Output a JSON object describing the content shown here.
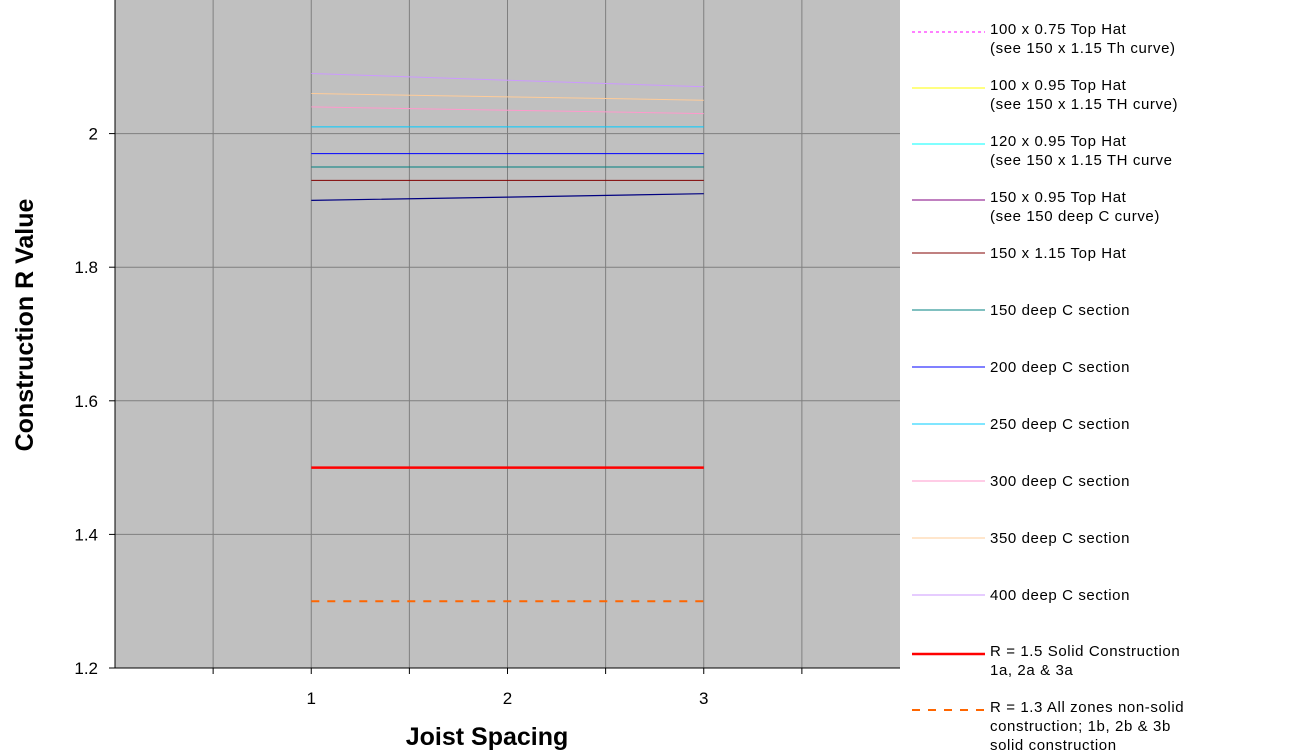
{
  "chart_data": {
    "type": "line",
    "xlabel": "Joist Spacing",
    "ylabel": "Construction R Value",
    "x": [
      1,
      2,
      3
    ],
    "xlim": [
      0,
      4
    ],
    "ylim": [
      1.2,
      2.2
    ],
    "xticks": [
      1,
      2,
      3
    ],
    "yticks": [
      1.2,
      1.4,
      1.6,
      1.8,
      2.0
    ],
    "ytick_labels": [
      "1.2",
      "1.4",
      "1.6",
      "1.8",
      "2"
    ],
    "grid": true,
    "plot_background": "#c0c0c0",
    "legend_position": "right",
    "series": [
      {
        "name": "100 x 0.75 Top Hat\n(see 150 x 1.15 Th curve)",
        "values": [
          null,
          null,
          null
        ],
        "color": "#ff00ff",
        "dash": "dotted",
        "width": 1
      },
      {
        "name": "100 x 0.95 Top Hat\n(see 150 x 1.15 TH curve)",
        "values": [
          null,
          null,
          null
        ],
        "color": "#ffff00",
        "dash": "solid",
        "width": 1
      },
      {
        "name": "120 x 0.95 Top Hat\n(see 150 x 1.15 TH curve",
        "values": [
          null,
          null,
          null
        ],
        "color": "#00ffff",
        "dash": "solid",
        "width": 1
      },
      {
        "name": "150 x 0.95 Top Hat\n(see 150 deep C curve)",
        "values": [
          null,
          null,
          null
        ],
        "color": "#800080",
        "dash": "solid",
        "width": 1
      },
      {
        "name": "150 x 1.15 Top Hat",
        "values": [
          1.93,
          1.93,
          1.93
        ],
        "color": "#800000",
        "dash": "solid",
        "width": 1
      },
      {
        "name": "150 deep C section",
        "values": [
          1.95,
          1.95,
          1.95
        ],
        "color": "#008080",
        "dash": "solid",
        "width": 1
      },
      {
        "name": "200 deep C section",
        "values": [
          1.97,
          1.97,
          1.97
        ],
        "color": "#0000ff",
        "dash": "solid",
        "width": 1
      },
      {
        "name": "250 deep C section",
        "values": [
          2.01,
          2.01,
          2.01
        ],
        "color": "#00ccff",
        "dash": "solid",
        "width": 1
      },
      {
        "name": "300 deep C section",
        "values": [
          2.04,
          2.035,
          2.03
        ],
        "color": "#ff99cc",
        "dash": "solid",
        "width": 1
      },
      {
        "name": "350 deep C section",
        "values": [
          2.06,
          2.055,
          2.05
        ],
        "color": "#ffcc99",
        "dash": "solid",
        "width": 1
      },
      {
        "name": "400 deep C section",
        "values": [
          2.09,
          2.08,
          2.07
        ],
        "color": "#cc99ff",
        "dash": "solid",
        "width": 1
      },
      {
        "name": "R = 1.5 Solid Construction\n1a, 2a & 3a",
        "values": [
          1.5,
          1.5,
          1.5
        ],
        "color": "#ff0000",
        "dash": "solid",
        "width": 2.5
      },
      {
        "name": "R = 1.3 All zones non-solid\nconstruction; 1b, 2b & 3b\nsolid construction",
        "values": [
          1.3,
          1.3,
          1.3
        ],
        "color": "#ff6600",
        "dash": "dashed",
        "width": 2
      },
      {
        "name": "",
        "values": [
          1.9,
          1.905,
          1.91
        ],
        "color": "#000080",
        "dash": "solid",
        "width": 1.2
      }
    ]
  }
}
